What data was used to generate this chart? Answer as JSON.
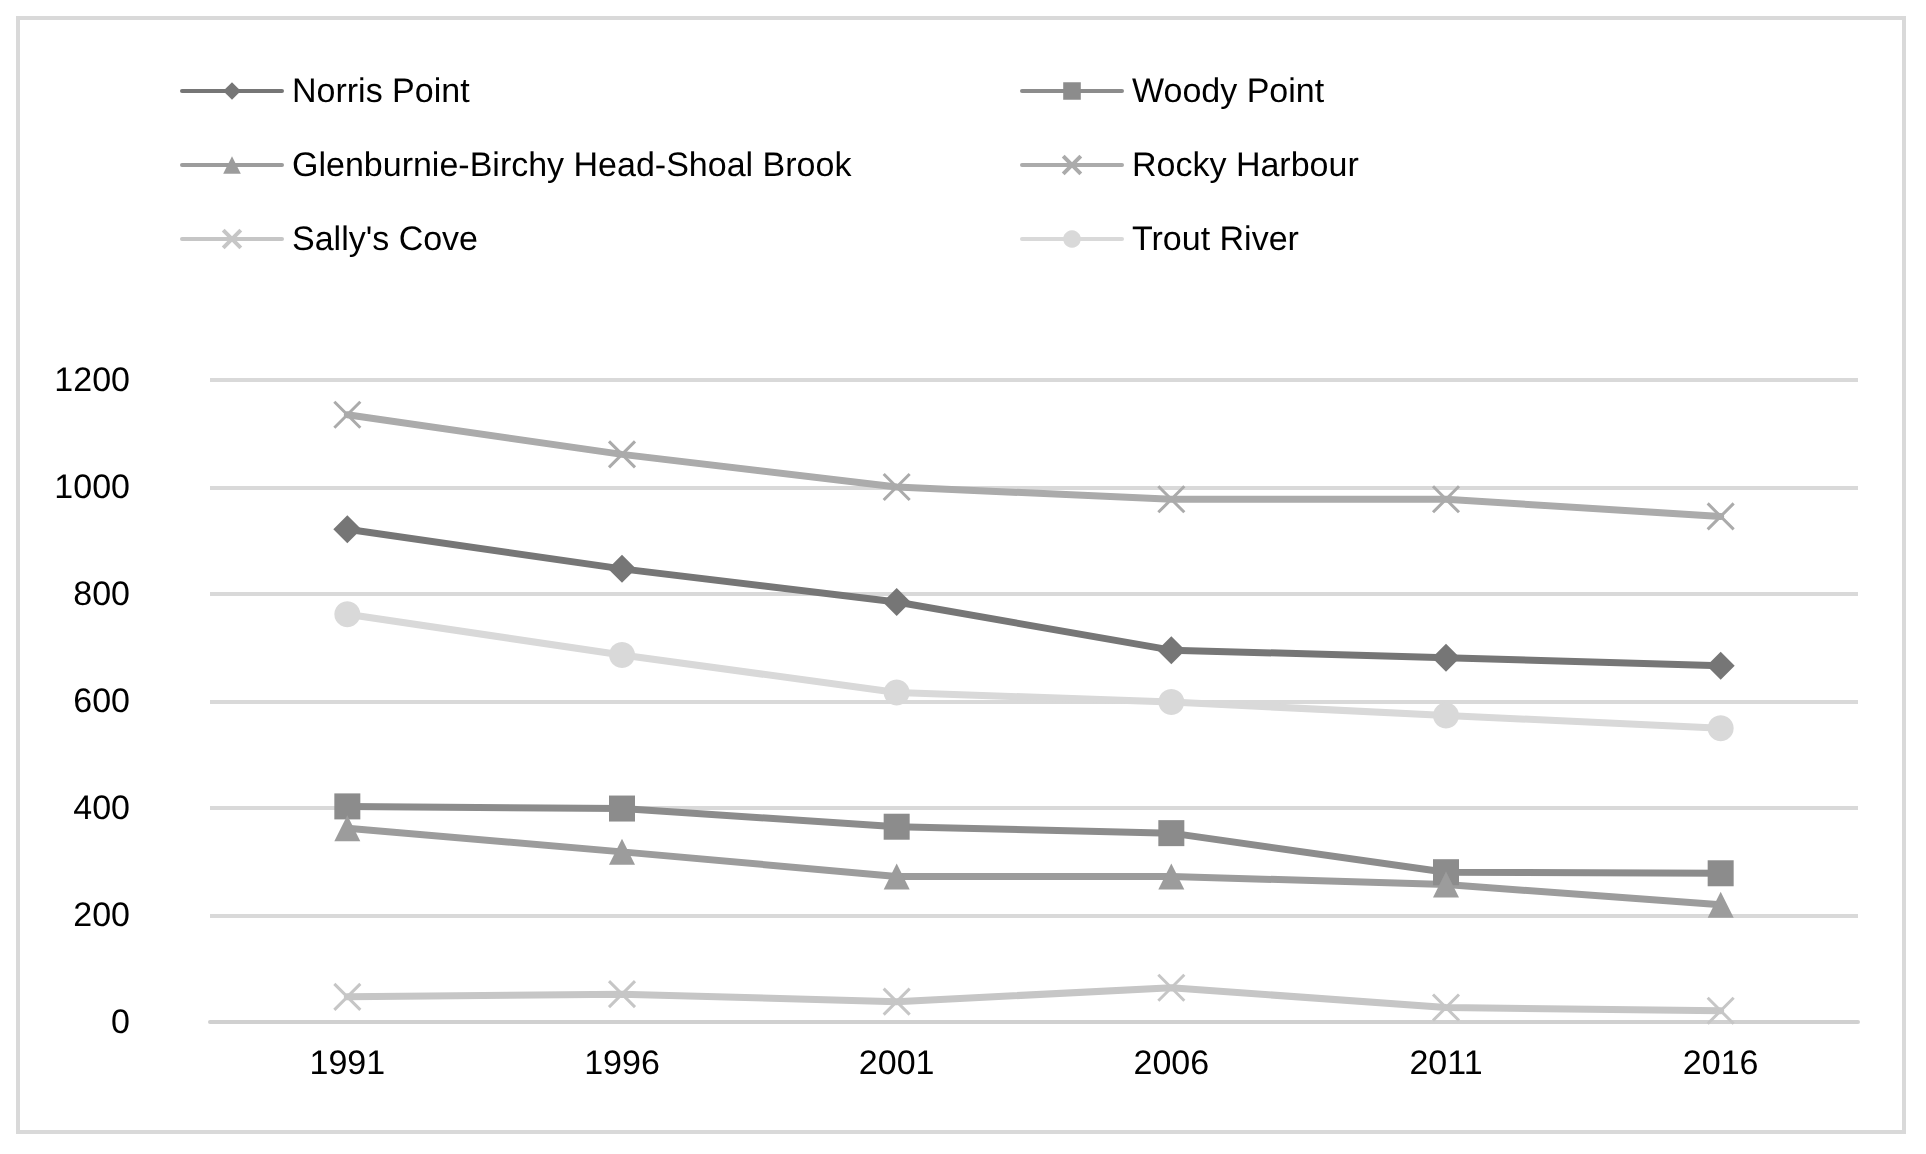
{
  "chart_data": {
    "type": "line",
    "categories": [
      "1991",
      "1996",
      "2001",
      "2006",
      "2011",
      "2016"
    ],
    "ylim": [
      0,
      1200
    ],
    "yticks": [
      0,
      200,
      400,
      600,
      800,
      1000,
      1200
    ],
    "grid": "y",
    "legend": "top left",
    "series": [
      {
        "name": "Norris Point",
        "color": "#767676",
        "marker": "diamond",
        "values": [
          921,
          847,
          785,
          695,
          681,
          666
        ]
      },
      {
        "name": "Woody Point",
        "color": "#8c8c8c",
        "marker": "square",
        "values": [
          403,
          399,
          365,
          353,
          280,
          278
        ]
      },
      {
        "name": "Glenburnie-Birchy Head-Shoal Brook",
        "color": "#9c9c9c",
        "marker": "triangle",
        "values": [
          362,
          318,
          272,
          272,
          257,
          219
        ]
      },
      {
        "name": "Rocky Harbour",
        "color": "#ababab",
        "marker": "cross",
        "values": [
          1135,
          1061,
          1000,
          977,
          977,
          945
        ]
      },
      {
        "name": "Sally's Cove",
        "color": "#c6c6c6",
        "marker": "cross",
        "values": [
          47,
          52,
          38,
          64,
          27,
          21
        ]
      },
      {
        "name": "Trout River",
        "color": "#d9d9d9",
        "marker": "circle",
        "values": [
          762,
          686,
          616,
          598,
          573,
          549
        ]
      }
    ]
  }
}
